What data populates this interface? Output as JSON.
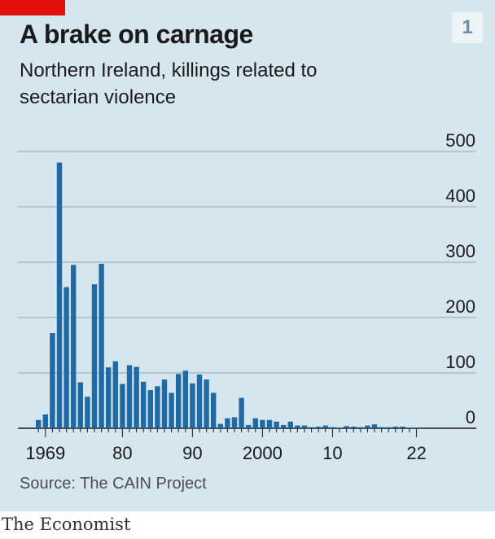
{
  "header": {
    "title": "A brake on carnage",
    "subtitle": "Northern Ireland, killings related to sectarian violence",
    "chart_number": "1"
  },
  "source": "Source: The CAIN Project",
  "brand": "The Economist",
  "colors": {
    "bar": "#1f6aa5",
    "background": "#d6e6ef",
    "accent": "#e3120b",
    "grid": "#aeb9c1"
  },
  "chart_data": {
    "type": "bar",
    "title": "A brake on carnage",
    "subtitle": "Northern Ireland, killings related to sectarian violence",
    "xlabel": "",
    "ylabel": "",
    "ylim": [
      0,
      500
    ],
    "yticks": [
      "0",
      "100",
      "200",
      "300",
      "400",
      "500"
    ],
    "xtick_labels": [
      {
        "year": 1969,
        "label": "1969"
      },
      {
        "year": 1980,
        "label": "80"
      },
      {
        "year": 1990,
        "label": "90"
      },
      {
        "year": 2000,
        "label": "2000"
      },
      {
        "year": 2010,
        "label": "10"
      },
      {
        "year": 2022,
        "label": "22"
      }
    ],
    "grid": true,
    "categories": [
      1968,
      1969,
      1970,
      1971,
      1972,
      1973,
      1974,
      1975,
      1976,
      1977,
      1978,
      1979,
      1980,
      1981,
      1982,
      1983,
      1984,
      1985,
      1986,
      1987,
      1988,
      1989,
      1990,
      1991,
      1992,
      1993,
      1994,
      1995,
      1996,
      1997,
      1998,
      1999,
      2000,
      2001,
      2002,
      2003,
      2004,
      2005,
      2006,
      2007,
      2008,
      2009,
      2010,
      2011,
      2012,
      2013,
      2014,
      2015,
      2016,
      2017,
      2018,
      2019,
      2020,
      2021,
      2022
    ],
    "values": [
      15,
      25,
      172,
      480,
      255,
      295,
      83,
      57,
      260,
      297,
      110,
      121,
      80,
      114,
      111,
      84,
      69,
      76,
      88,
      64,
      98,
      104,
      81,
      97,
      88,
      64,
      8,
      18,
      20,
      55,
      6,
      18,
      15,
      15,
      12,
      6,
      12,
      5,
      5,
      2,
      3,
      5,
      2,
      1,
      4,
      3,
      2,
      5,
      7,
      2,
      2,
      3,
      3,
      1,
      1
    ]
  }
}
